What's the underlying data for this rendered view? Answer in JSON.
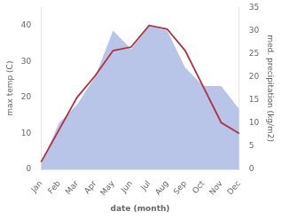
{
  "chart_data": {
    "type": "line",
    "categories": [
      "Jan",
      "Feb",
      "Mar",
      "Apr",
      "May",
      "Jun",
      "Jul",
      "Aug",
      "Sep",
      "Oct",
      "Nov",
      "Dec"
    ],
    "xlabel": "date (month)",
    "ylabel": "max temp (C)",
    "y2label": "med. precipitation (kg/m2)",
    "series": [
      {
        "type": "area",
        "color": "#b8c4e8",
        "axis": "y2",
        "values": [
          1,
          10,
          14,
          20,
          30,
          26,
          31,
          30,
          22,
          18,
          18,
          13
        ]
      },
      {
        "type": "line",
        "color": "#b03040",
        "values": [
          2,
          11,
          20,
          26,
          33,
          34,
          40,
          39,
          33,
          23,
          13,
          10
        ]
      }
    ],
    "ylim": [
      0,
      45
    ],
    "yticks": [
      0,
      10,
      20,
      30,
      40
    ],
    "y2lim": [
      0,
      35
    ],
    "y2ticks": [
      0,
      5,
      10,
      15,
      20,
      25,
      30,
      35
    ],
    "grid": false
  }
}
